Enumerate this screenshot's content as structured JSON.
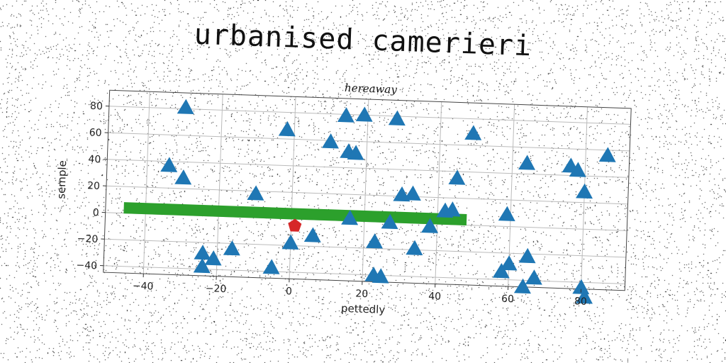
{
  "title": "urbanised camerieri",
  "chart_data": {
    "type": "scatter",
    "subtitle": "hereaway",
    "xlabel": "pettedly",
    "ylabel": "semple",
    "xlim": [
      -51,
      92
    ],
    "ylim": [
      -45,
      92
    ],
    "xticks": [
      -40,
      -20,
      0,
      20,
      40,
      60,
      80
    ],
    "yticks": [
      -40,
      -20,
      0,
      20,
      40,
      60,
      80
    ],
    "xtick_labels": [
      "−40",
      "−20",
      "0",
      "20",
      "40",
      "60",
      "80"
    ],
    "ytick_labels": [
      "−40",
      "−20",
      "0",
      "20",
      "40",
      "60",
      "80"
    ],
    "grid": true,
    "band": {
      "x": [
        -46,
        48
      ],
      "y": 4,
      "color": "#2ca02c"
    },
    "series": [
      {
        "marker": "triangle",
        "color": "#1f77b4",
        "points": [
          [
            -30,
            81
          ],
          [
            -2,
            67
          ],
          [
            14,
            79
          ],
          [
            19,
            80
          ],
          [
            28,
            78
          ],
          [
            49,
            69
          ],
          [
            10,
            59
          ],
          [
            15,
            52
          ],
          [
            17,
            51
          ],
          [
            64,
            48
          ],
          [
            76,
            47
          ],
          [
            78,
            44
          ],
          [
            86,
            56
          ],
          [
            -34,
            37
          ],
          [
            -30,
            28
          ],
          [
            45,
            35
          ],
          [
            80,
            28
          ],
          [
            -10,
            18
          ],
          [
            30,
            21
          ],
          [
            33,
            22
          ],
          [
            42,
            10
          ],
          [
            44,
            11
          ],
          [
            59,
            9
          ],
          [
            16,
            2
          ],
          [
            27,
            0
          ],
          [
            38,
            -2
          ],
          [
            6,
            -12
          ],
          [
            0,
            -18
          ],
          [
            23,
            -15
          ],
          [
            34,
            -19
          ],
          [
            -16,
            -24
          ],
          [
            -24,
            -28
          ],
          [
            -21,
            -32
          ],
          [
            -24,
            -38
          ],
          [
            -5,
            -37
          ],
          [
            23,
            -40
          ],
          [
            25,
            -41
          ],
          [
            60,
            -28
          ],
          [
            58,
            -34
          ],
          [
            65,
            -22
          ],
          [
            67,
            -38
          ],
          [
            64,
            -45
          ],
          [
            80,
            -44
          ],
          [
            81,
            -51
          ]
        ]
      },
      {
        "marker": "pentagon",
        "color": "#d62728",
        "points": [
          [
            1,
            -5
          ]
        ]
      }
    ]
  }
}
